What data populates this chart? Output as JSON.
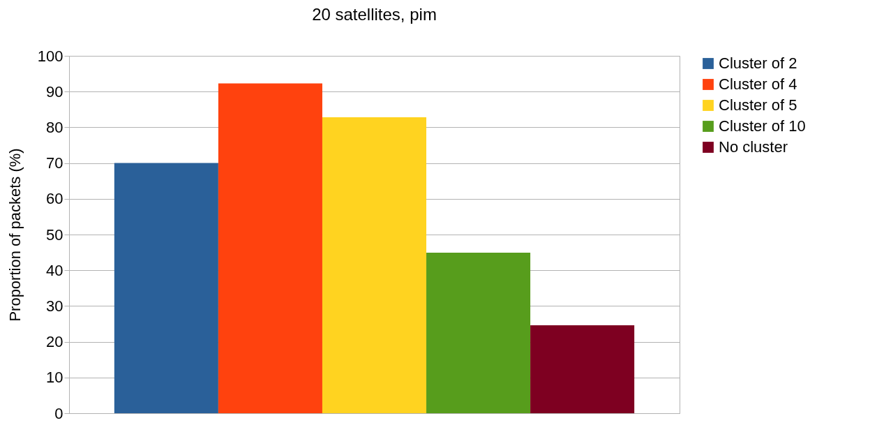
{
  "chart_data": {
    "type": "bar",
    "title": "20 satellites, pim",
    "ylabel": "Proportion of packets (%)",
    "categories": [
      null
    ],
    "series": [
      {
        "name": "Cluster of 2",
        "color": "#2a6099",
        "values": [
          70.0
        ]
      },
      {
        "name": "Cluster of 4",
        "color": "#ff420e",
        "values": [
          92.3
        ]
      },
      {
        "name": "Cluster of 5",
        "color": "#ffd320",
        "values": [
          82.8
        ]
      },
      {
        "name": "Cluster of 10",
        "color": "#579d1c",
        "values": [
          44.9
        ]
      },
      {
        "name": "No cluster",
        "color": "#7e0021",
        "values": [
          24.6
        ]
      }
    ],
    "ylim": [
      0,
      100
    ],
    "yticks": [
      0,
      10,
      20,
      30,
      40,
      50,
      60,
      70,
      80,
      90,
      100
    ],
    "grid": "y",
    "legend": "right",
    "tick_labels": "y"
  }
}
